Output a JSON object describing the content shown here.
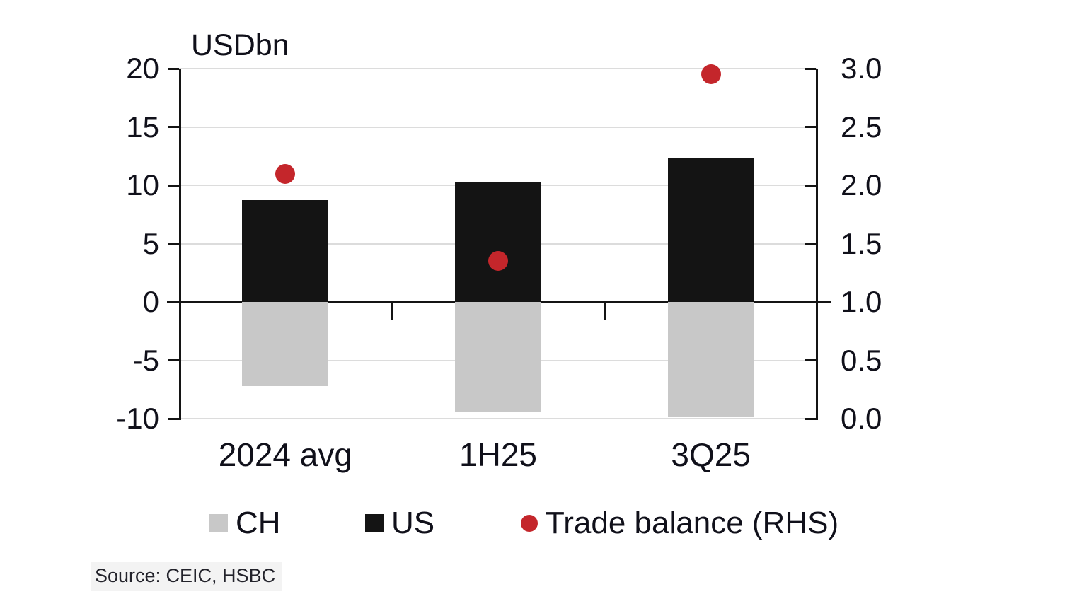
{
  "chart_data": {
    "type": "bar",
    "title": "USDbn",
    "categories": [
      "2024 avg",
      "1H25",
      "3Q25"
    ],
    "series": [
      {
        "name": "CH",
        "type": "bar",
        "axis": "left",
        "color": "#c8c8c8",
        "values": [
          -7.2,
          -9.4,
          -9.9
        ]
      },
      {
        "name": "US",
        "type": "bar",
        "axis": "left",
        "color": "#141414",
        "values": [
          8.7,
          10.3,
          12.3
        ]
      },
      {
        "name": "Trade balance (RHS)",
        "type": "scatter",
        "axis": "right",
        "color": "#c4262b",
        "values": [
          2.1,
          1.35,
          2.95
        ]
      }
    ],
    "left_axis": {
      "label": "USDbn",
      "min": -10,
      "max": 20,
      "step": 5,
      "ticks": [
        20,
        15,
        10,
        5,
        0,
        -5,
        -10
      ]
    },
    "right_axis": {
      "min": 0.0,
      "max": 3.0,
      "step": 0.5,
      "ticks": [
        3.0,
        2.5,
        2.0,
        1.5,
        1.0,
        0.5,
        0.0
      ]
    },
    "grid": true,
    "legend_position": "bottom",
    "palette": {
      "gridline": "#dcdcdc",
      "axis": "#141414",
      "text": "#10101a",
      "source_background": "#f3f3f3"
    }
  },
  "source": {
    "label": "Source: CEIC, HSBC"
  }
}
